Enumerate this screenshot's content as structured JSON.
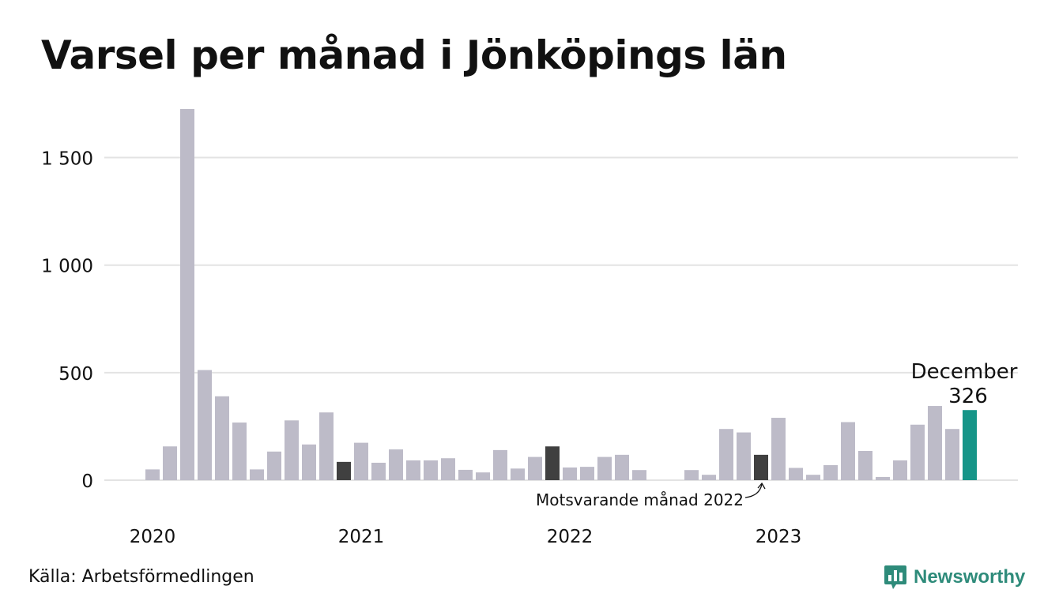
{
  "title": "Varsel per månad i Jönköpings län",
  "source": "Källa: Arbetsförmedlingen",
  "brand": {
    "name": "Newsworthy",
    "icon": "bar-chart-speech-bubble-icon"
  },
  "colors": {
    "bar": "#bdbbc8",
    "comparison": "#404040",
    "highlight": "#169588",
    "grid": "#e3e3e3",
    "brand": "#2e8b7a"
  },
  "chart_data": {
    "type": "bar",
    "title": "Varsel per månad i Jönköpings län",
    "xlabel": "",
    "ylabel": "",
    "ylim": [
      0,
      1750
    ],
    "grid": true,
    "y_ticks": [
      {
        "value": 0,
        "label": "0"
      },
      {
        "value": 500,
        "label": "500"
      },
      {
        "value": 1000,
        "label": "1 000"
      },
      {
        "value": 1500,
        "label": "1 500"
      }
    ],
    "x_tick_labels": [
      {
        "label": "2020",
        "index": 0
      },
      {
        "label": "2021",
        "index": 12
      },
      {
        "label": "2022",
        "index": 24
      },
      {
        "label": "2023",
        "index": 36
      }
    ],
    "months": [
      "2020-01",
      "2020-02",
      "2020-03",
      "2020-04",
      "2020-05",
      "2020-06",
      "2020-07",
      "2020-08",
      "2020-09",
      "2020-10",
      "2020-11",
      "2020-12",
      "2021-01",
      "2021-02",
      "2021-03",
      "2021-04",
      "2021-05",
      "2021-06",
      "2021-07",
      "2021-08",
      "2021-09",
      "2021-10",
      "2021-11",
      "2021-12",
      "2022-01",
      "2022-02",
      "2022-03",
      "2022-04",
      "2022-05",
      "2022-06",
      "2022-07",
      "2022-08",
      "2022-09",
      "2022-10",
      "2022-11",
      "2022-12",
      "2023-01",
      "2023-02",
      "2023-03",
      "2023-04",
      "2023-05",
      "2023-06",
      "2023-07",
      "2023-08",
      "2023-09",
      "2023-10",
      "2023-11",
      "2023-12"
    ],
    "values": [
      50,
      157,
      1726,
      512,
      390,
      268,
      50,
      133,
      278,
      166,
      315,
      85,
      174,
      81,
      143,
      92,
      92,
      102,
      48,
      36,
      140,
      54,
      108,
      157,
      59,
      62,
      108,
      118,
      47,
      0,
      0,
      47,
      25,
      238,
      222,
      118,
      290,
      57,
      25,
      70,
      270,
      136,
      15,
      92,
      258,
      345,
      238,
      326
    ],
    "comparison_indices": [
      11,
      23,
      35
    ],
    "highlight_index": 47,
    "annotations": {
      "comparison": "Motsvarande månad 2022",
      "latest_month": "December",
      "latest_value": "326"
    }
  }
}
